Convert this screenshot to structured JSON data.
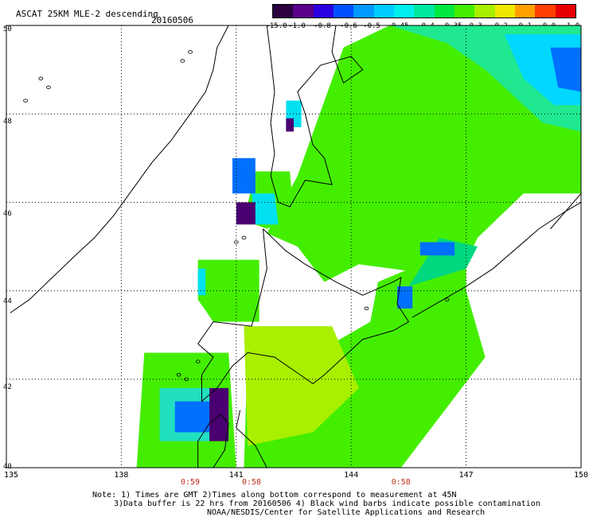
{
  "header": {
    "title": "ASCAT 25KM MLE-2 descending",
    "date": "20160506"
  },
  "colorbar": {
    "labels": [
      "-15.0",
      "-1.0",
      "-0.8",
      "-0.6",
      "-0.5",
      "-0.45",
      "-0.4",
      "-0.35",
      "-0.3",
      "-0.2",
      "-0.1",
      "0.0",
      "1.0"
    ],
    "colors": [
      "#2c0040",
      "#5a008c",
      "#2a00e0",
      "#0050ff",
      "#0099ff",
      "#00ccff",
      "#00f0f0",
      "#00e8a0",
      "#00e840",
      "#44ee00",
      "#a8f000",
      "#f0e800",
      "#ffa000",
      "#ff4000",
      "#e80000"
    ]
  },
  "map": {
    "lat_labels": [
      "50",
      "48",
      "46",
      "44",
      "42",
      "40"
    ],
    "lon_labels": [
      "135",
      "138",
      "141",
      "144",
      "147",
      "150"
    ],
    "extent": {
      "lon": [
        135,
        150
      ],
      "lat": [
        40,
        50
      ]
    },
    "times": [
      {
        "label": "0:59",
        "lon": 139.8
      },
      {
        "label": "0:58",
        "lon": 141.4
      },
      {
        "label": "0:58",
        "lon": 145.3
      }
    ]
  },
  "notes": {
    "line1": "Note: 1) Times are GMT 2)Times along bottom correspond to measurement at 45N",
    "line2": "3)Data buffer is 22 hrs from 20160506 4) Black wind barbs indicate possible contamination",
    "line3": "NOAA/NESDIS/Center for Satellite Applications and Research"
  }
}
